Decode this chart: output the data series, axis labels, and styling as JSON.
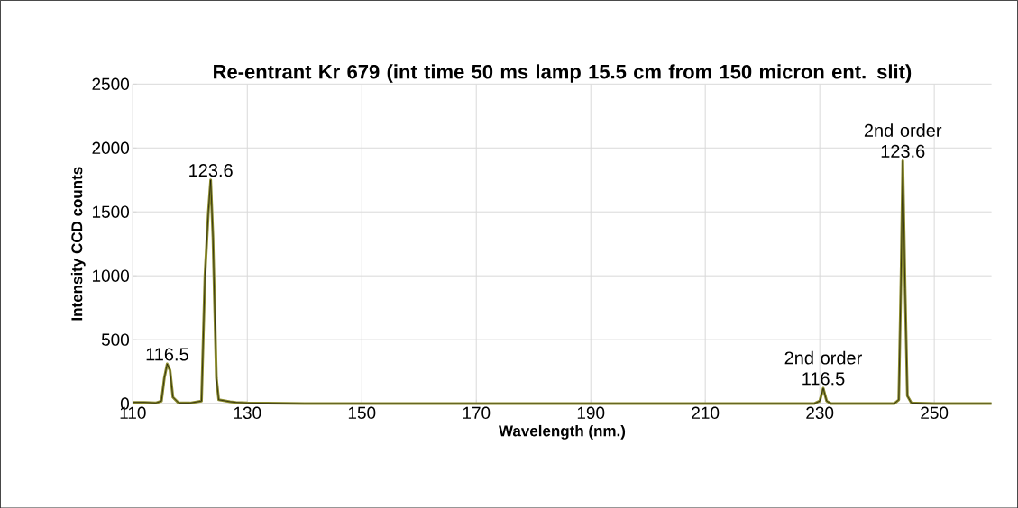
{
  "chart_data": {
    "type": "line",
    "title": "Re-entrant Kr 679 (int time 50 ms lamp 15.5 cm from 150 micron ent. slit)",
    "xlabel": "Wavelength (nm.)",
    "ylabel": "Intensity CCD counts",
    "x": [
      110,
      112,
      114,
      115,
      115.5,
      116,
      116.5,
      117,
      118,
      120,
      122,
      122.6,
      123.2,
      123.6,
      124,
      124.6,
      125,
      127,
      128,
      130,
      140,
      160,
      180,
      200,
      220,
      229,
      230,
      230.6,
      231.2,
      232,
      243,
      243.8,
      244.2,
      244.5,
      244.9,
      245.3,
      246,
      250,
      260
    ],
    "values": [
      10,
      10,
      5,
      20,
      200,
      310,
      260,
      50,
      5,
      5,
      20,
      1000,
      1500,
      1750,
      1300,
      200,
      30,
      15,
      10,
      5,
      0,
      0,
      0,
      0,
      0,
      0,
      20,
      120,
      20,
      0,
      0,
      30,
      1000,
      1900,
      900,
      60,
      5,
      0,
      0
    ],
    "color": "#8c8c2e",
    "xlim": [
      110,
      260
    ],
    "xticks": [
      110,
      130,
      150,
      170,
      190,
      210,
      230,
      250
    ],
    "ylim": [
      0,
      2500
    ],
    "yticks": [
      0,
      500,
      1000,
      1500,
      2000,
      2500
    ],
    "grid": true,
    "marker": "none",
    "line_style": "solid",
    "annotations": [
      {
        "text": "116.5",
        "x": 116,
        "y": 310
      },
      {
        "text": "123.6",
        "x": 123.6,
        "y": 1750
      },
      {
        "text": "2nd order 116.5",
        "x": 230.6,
        "y": 120
      },
      {
        "text": "2nd order 123.6",
        "x": 244.5,
        "y": 1900
      }
    ]
  }
}
